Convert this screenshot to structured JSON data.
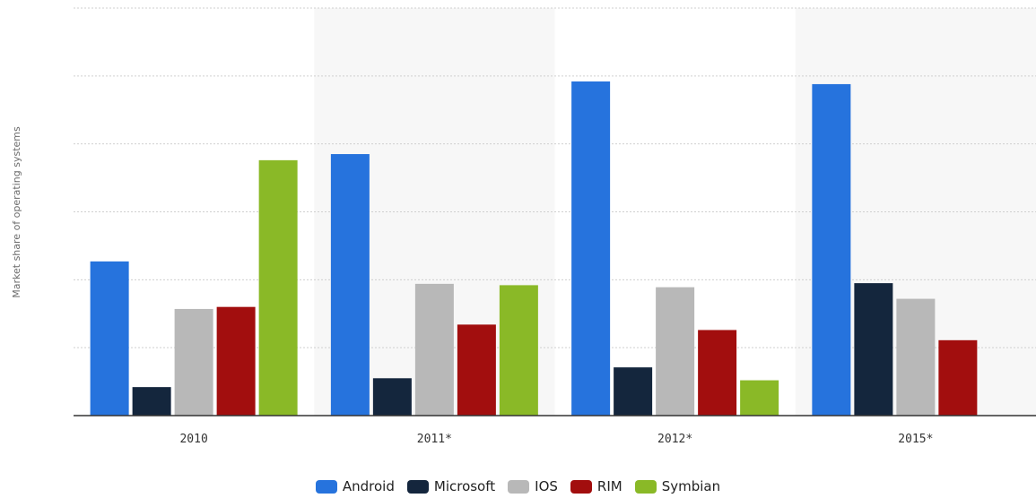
{
  "chart_data": {
    "type": "bar",
    "title": "",
    "xlabel": "",
    "ylabel": "Market share of operating systems",
    "categories": [
      "2010",
      "2011*",
      "2012*",
      "2015*"
    ],
    "ylim": [
      0,
      60
    ],
    "grid": true,
    "legend_position": "bottom",
    "series": [
      {
        "name": "Android",
        "color": "#2673dd",
        "values": [
          22.7,
          38.5,
          49.2,
          48.8
        ]
      },
      {
        "name": "Microsoft",
        "color": "#14263d",
        "values": [
          4.2,
          5.5,
          7.1,
          19.5
        ]
      },
      {
        "name": "IOS",
        "color": "#b8b8b8",
        "values": [
          15.7,
          19.4,
          18.9,
          17.2
        ]
      },
      {
        "name": "RIM",
        "color": "#a20e0e",
        "values": [
          16.0,
          13.4,
          12.6,
          11.1
        ]
      },
      {
        "name": "Symbian",
        "color": "#8ab927",
        "values": [
          37.6,
          19.2,
          5.2,
          null
        ]
      }
    ]
  }
}
